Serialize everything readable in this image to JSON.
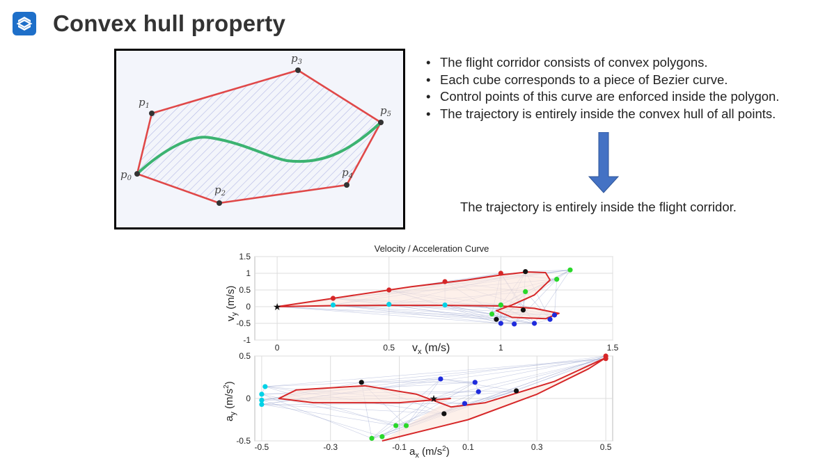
{
  "slide": {
    "title": "Convex hull property",
    "logo_icon": "s-logo-icon"
  },
  "diagram": {
    "points": [
      {
        "label": "p0",
        "sub": "0"
      },
      {
        "label": "p1",
        "sub": "1"
      },
      {
        "label": "p2",
        "sub": "2"
      },
      {
        "label": "p3",
        "sub": "3"
      },
      {
        "label": "p4",
        "sub": "4"
      },
      {
        "label": "p5",
        "sub": "5"
      }
    ],
    "colors": {
      "hull": "#e04848",
      "curve": "#3cb371",
      "hatch": "#b7bce6",
      "point": "#333333"
    }
  },
  "bullets": [
    "The flight corridor consists of convex polygons.",
    "Each cube corresponds to a piece of Bezier curve.",
    "Control points of this curve are enforced inside the polygon.",
    "The trajectory is entirely inside the convex hull of all points."
  ],
  "conclusion": "The trajectory is entirely inside the flight corridor.",
  "arrow_icon": "down-arrow-icon",
  "chart_data": [
    {
      "type": "scatter",
      "title": "Velocity / Acceleration Curve",
      "xlabel": "v",
      "xlabel_sub": "x",
      "xlabel_unit": " (m/s)",
      "ylabel": "v",
      "ylabel_sub": "y",
      "ylabel_unit": " (m/s)",
      "xlim": [
        -0.1,
        1.5
      ],
      "ylim": [
        -1,
        1.5
      ],
      "xticks": [
        0,
        0.5,
        1,
        1.5
      ],
      "yticks": [
        1.5,
        1,
        0.5,
        0,
        -0.5,
        -1
      ],
      "xtick_labels": [
        "0",
        "0.5",
        "1",
        "1.5"
      ],
      "ytick_labels": [
        "1.5",
        "1",
        "0.5",
        "0",
        "-0.5",
        "-1"
      ],
      "grid": true,
      "start": [
        0,
        0
      ],
      "series": [
        {
          "color": "#d62728",
          "points": [
            [
              0.25,
              0.25
            ],
            [
              0.5,
              0.5
            ],
            [
              0.75,
              0.75
            ],
            [
              1.0,
              1.0
            ]
          ]
        },
        {
          "color": "#00d2e6",
          "points": [
            [
              0.25,
              0.05
            ],
            [
              0.5,
              0.07
            ],
            [
              0.75,
              0.05
            ],
            [
              1.0,
              0.05
            ]
          ]
        },
        {
          "color": "#1f2bdc",
          "points": [
            [
              1.0,
              -0.5
            ],
            [
              1.06,
              -0.52
            ],
            [
              1.15,
              -0.5
            ],
            [
              1.22,
              -0.38
            ],
            [
              1.24,
              -0.25
            ]
          ]
        },
        {
          "color": "#2ad82a",
          "points": [
            [
              0.96,
              -0.22
            ],
            [
              1.0,
              0.05
            ],
            [
              1.11,
              0.45
            ],
            [
              1.25,
              0.82
            ],
            [
              1.31,
              1.1
            ]
          ]
        },
        {
          "color": "#111111",
          "points": [
            [
              1.11,
              1.05
            ],
            [
              1.1,
              -0.1
            ],
            [
              0.98,
              -0.38
            ]
          ]
        }
      ],
      "curve": [
        [
          0,
          0
        ],
        [
          0.3,
          0.3
        ],
        [
          0.6,
          0.6
        ],
        [
          0.85,
          0.8
        ],
        [
          1.0,
          0.95
        ],
        [
          1.12,
          1.04
        ],
        [
          1.2,
          1.02
        ],
        [
          1.22,
          0.8
        ],
        [
          1.15,
          0.35
        ],
        [
          1.05,
          0.05
        ],
        [
          0.98,
          -0.12
        ],
        [
          1.05,
          -0.32
        ],
        [
          1.2,
          -0.36
        ],
        [
          1.26,
          -0.2
        ],
        [
          1.15,
          -0.05
        ],
        [
          1.0,
          0.02
        ],
        [
          0.75,
          0.04
        ],
        [
          0.5,
          0.04
        ],
        [
          0.25,
          0.03
        ],
        [
          0,
          0
        ]
      ]
    },
    {
      "type": "scatter",
      "xlabel": "a",
      "xlabel_sub": "x",
      "xlabel_unit": " (m/s",
      "xlabel_sup": "2",
      "xlabel_tail": ")",
      "ylabel": "a",
      "ylabel_sub": "y",
      "ylabel_unit": " (m/s",
      "ylabel_sup": "2",
      "ylabel_tail": ")",
      "xlim": [
        -0.52,
        0.52
      ],
      "ylim": [
        -0.5,
        0.5
      ],
      "xticks": [
        -0.5,
        -0.3,
        -0.1,
        0.1,
        0.3,
        0.5
      ],
      "yticks": [
        0.5,
        0,
        -0.5
      ],
      "xtick_labels": [
        "-0.5",
        "-0.3",
        "-0.1",
        "0.1",
        "0.3",
        "0.5"
      ],
      "ytick_labels": [
        "0.5",
        "0",
        "-0.5"
      ],
      "grid": true,
      "start": [
        0.0,
        0.0
      ],
      "series": [
        {
          "color": "#d62728",
          "points": [
            [
              0.5,
              0.5
            ],
            [
              0.5,
              0.47
            ]
          ]
        },
        {
          "color": "#00d2e6",
          "points": [
            [
              -0.49,
              0.14
            ],
            [
              -0.5,
              0.05
            ],
            [
              -0.5,
              -0.02
            ],
            [
              -0.5,
              -0.07
            ]
          ]
        },
        {
          "color": "#1f2bdc",
          "points": [
            [
              0.02,
              0.23
            ],
            [
              0.12,
              0.19
            ],
            [
              0.13,
              0.08
            ],
            [
              0.09,
              -0.06
            ]
          ]
        },
        {
          "color": "#2ad82a",
          "points": [
            [
              -0.18,
              -0.47
            ],
            [
              -0.15,
              -0.45
            ],
            [
              -0.11,
              -0.32
            ],
            [
              -0.08,
              -0.32
            ]
          ]
        },
        {
          "color": "#111111",
          "points": [
            [
              -0.21,
              0.19
            ],
            [
              0.03,
              -0.18
            ],
            [
              0.24,
              0.09
            ]
          ]
        }
      ],
      "curve": [
        [
          -0.15,
          -0.5
        ],
        [
          0.1,
          -0.25
        ],
        [
          0.3,
          0.05
        ],
        [
          0.45,
          0.35
        ],
        [
          0.5,
          0.48
        ],
        [
          0.35,
          0.2
        ],
        [
          0.15,
          -0.05
        ],
        [
          0.05,
          -0.1
        ],
        [
          -0.05,
          0.05
        ],
        [
          -0.2,
          0.15
        ],
        [
          -0.4,
          0.1
        ],
        [
          -0.45,
          0.0
        ],
        [
          -0.35,
          -0.05
        ],
        [
          -0.1,
          -0.05
        ],
        [
          0.05,
          0.0
        ]
      ]
    }
  ]
}
